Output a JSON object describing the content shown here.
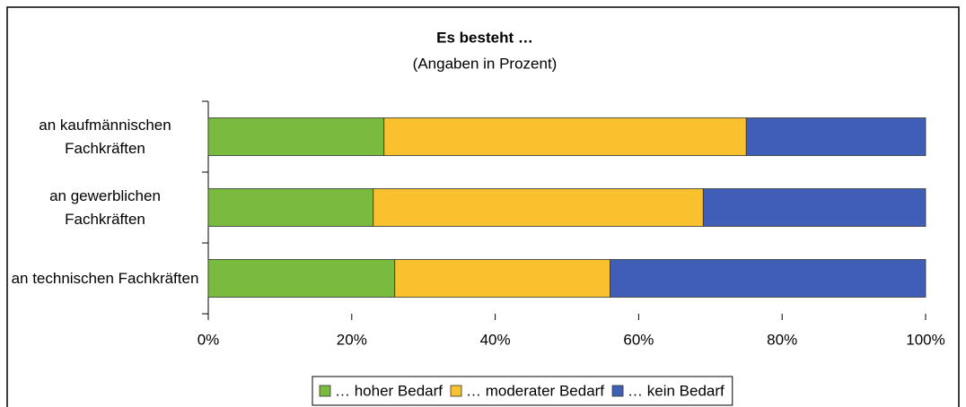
{
  "chart_data": {
    "type": "stacked-barh",
    "title": "Es besteht …",
    "subtitle": "(Angaben in Prozent)",
    "categories": [
      "an kaufmännischen Fachkräften",
      "an gewerblichen Fachkräften",
      "an technischen Fachkräften"
    ],
    "series": [
      {
        "name": "… hoher Bedarf",
        "color": "#78bb3f",
        "values": [
          24.5,
          23,
          26
        ]
      },
      {
        "name": "… moderater Bedarf",
        "color": "#f8c12d",
        "values": [
          50.5,
          46,
          30
        ]
      },
      {
        "name": "… kein Bedarf",
        "color": "#3f5fb6",
        "values": [
          25,
          31,
          44
        ]
      }
    ],
    "xlim": [
      0,
      100
    ],
    "xticks": [
      {
        "value": 0,
        "label": "0%"
      },
      {
        "value": 20,
        "label": "20%"
      },
      {
        "value": 40,
        "label": "40%"
      },
      {
        "value": 60,
        "label": "60%"
      },
      {
        "value": 80,
        "label": "80%"
      },
      {
        "value": 100,
        "label": "100%"
      }
    ],
    "legend": "bottom"
  }
}
